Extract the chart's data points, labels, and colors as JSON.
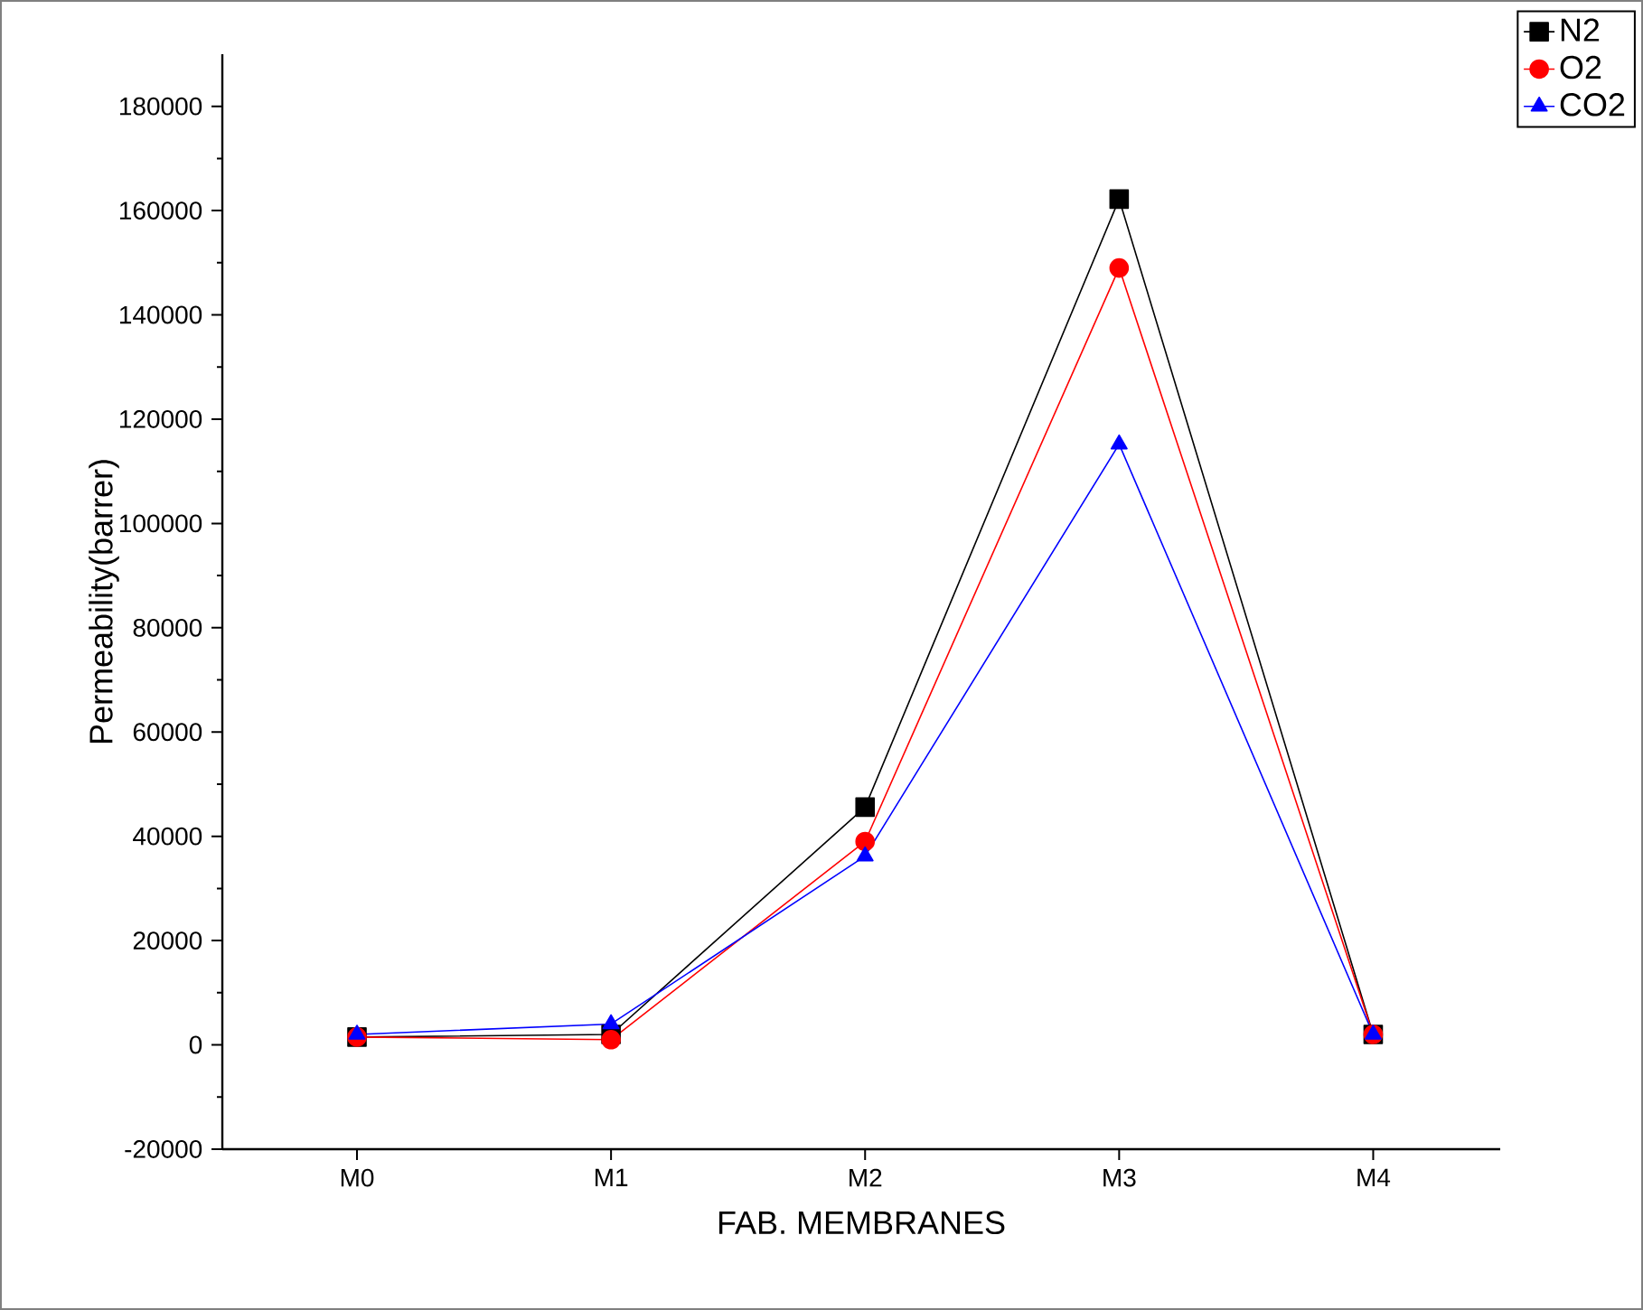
{
  "chart_data": {
    "type": "line",
    "xlabel": "FAB. MEMBRANES",
    "ylabel": "Permeability(barrer)",
    "categories": [
      "M0",
      "M1",
      "M2",
      "M3",
      "M4"
    ],
    "series": [
      {
        "name": "N2",
        "color": "#000000",
        "marker": "square",
        "values": [
          1500,
          2000,
          45600,
          162200,
          2000
        ]
      },
      {
        "name": "O2",
        "color": "#ff0000",
        "marker": "circle",
        "values": [
          1500,
          1000,
          39000,
          149000,
          2000
        ]
      },
      {
        "name": "CO2",
        "color": "#0000ff",
        "marker": "triangle",
        "values": [
          2000,
          4000,
          36200,
          115200,
          2000
        ]
      }
    ],
    "ylim": [
      -20000,
      190000
    ],
    "yticks": [
      -20000,
      0,
      20000,
      40000,
      60000,
      80000,
      100000,
      120000,
      140000,
      160000,
      180000
    ],
    "legend": "top right",
    "grid": false,
    "line_style": "solid"
  }
}
